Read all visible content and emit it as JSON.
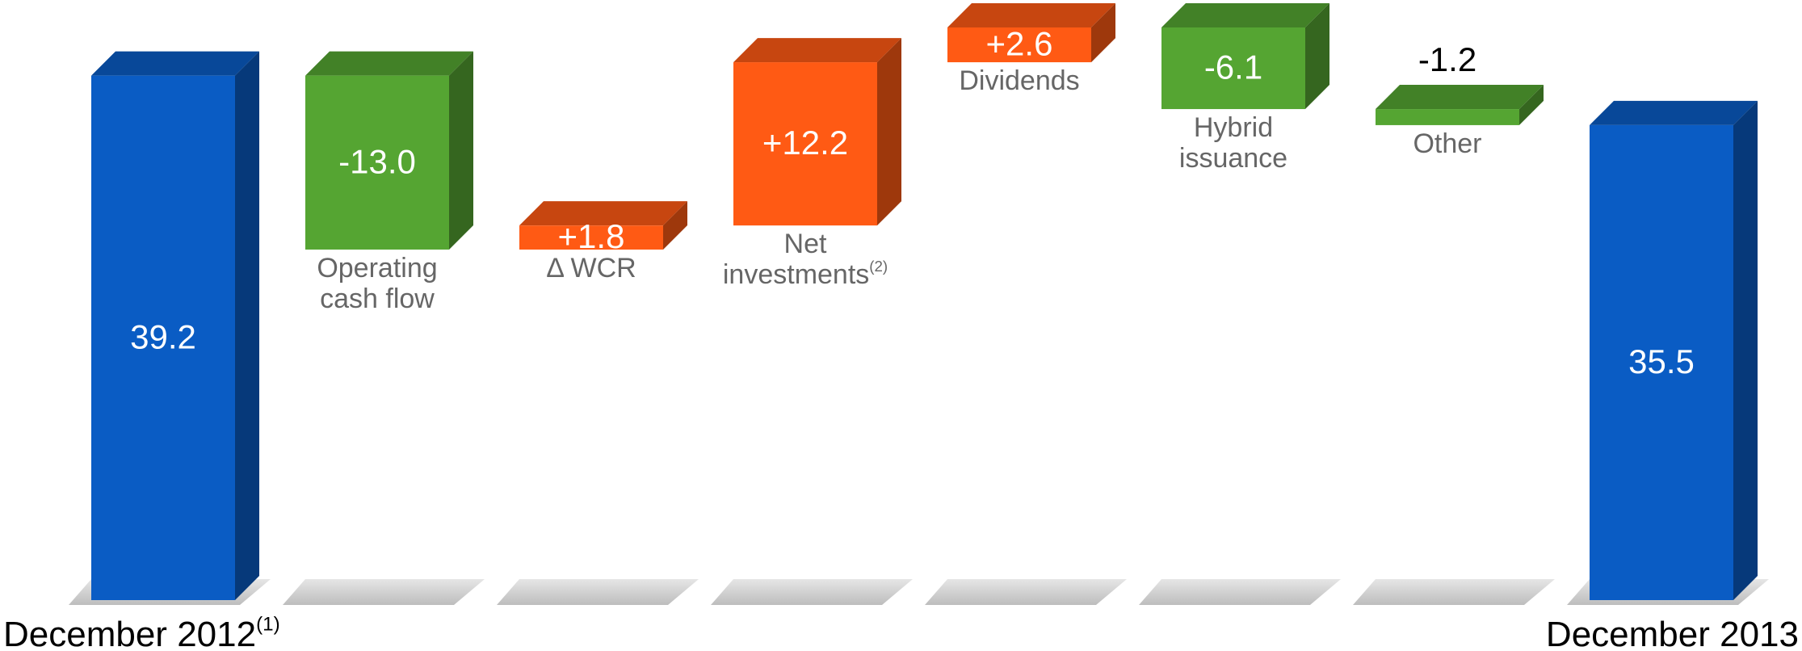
{
  "chart_data": {
    "type": "waterfall",
    "categories": [
      "December 2012",
      "Operating cash flow",
      "Δ WCR",
      "Net investments",
      "Dividends",
      "Hybrid issuance",
      "Other",
      "December 2013"
    ],
    "category_notes": [
      "(1)",
      null,
      null,
      "(2)",
      null,
      null,
      null,
      null
    ],
    "values": [
      39.2,
      -13.0,
      1.8,
      12.2,
      2.6,
      -6.1,
      -1.2,
      35.5
    ],
    "value_labels": [
      "39.2",
      "-13.0",
      "+1.8",
      "+12.2",
      "+2.6",
      "-6.1",
      "-1.2",
      "35.5"
    ],
    "totals": [
      true,
      false,
      false,
      false,
      false,
      false,
      false,
      true
    ],
    "colors": [
      "#0a5cc4",
      "#55a532",
      "#ff5a14",
      "#ff5a14",
      "#ff5a14",
      "#55a532",
      "#55a532",
      "#0a5cc4"
    ]
  }
}
